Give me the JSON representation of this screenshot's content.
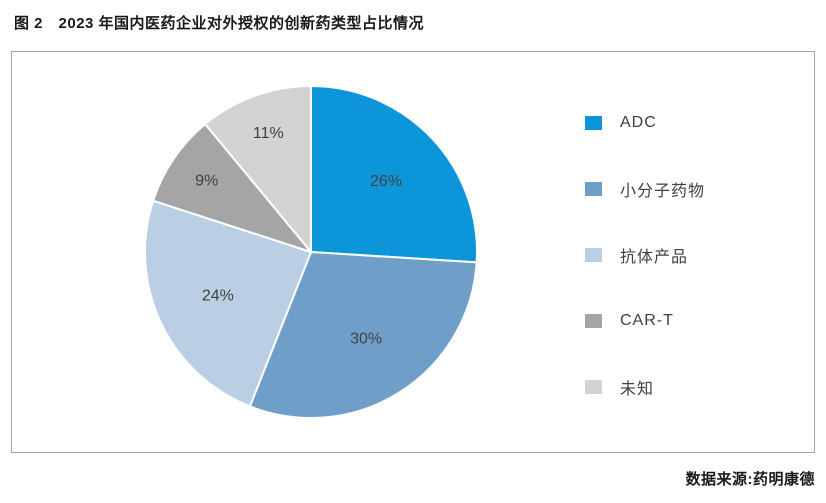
{
  "figure": {
    "title": "图 2　2023 年国内医药企业对外授权的创新药类型占比情况",
    "source": "数据来源:药明康德"
  },
  "colors": {
    "box_border": "#a6a6a6",
    "slice_border": "#ffffff",
    "label_text": "#404040",
    "title_text": "#1a1a1a"
  },
  "chart_data": {
    "type": "pie",
    "title": "2023 年国内医药企业对外授权的创新药类型占比情况",
    "legend_position": "right",
    "start_angle_deg": 0,
    "direction": "clockwise",
    "value_unit": "%",
    "slices": [
      {
        "label": "ADC",
        "value": 26,
        "display": "26%",
        "color": "#0d95da"
      },
      {
        "label": "小分子药物",
        "value": 30,
        "display": "30%",
        "color": "#6f9fc9"
      },
      {
        "label": "抗体产品",
        "value": 24,
        "display": "24%",
        "color": "#bacfe3"
      },
      {
        "label": "CAR-T",
        "value": 9,
        "display": "9%",
        "color": "#a5a5a5"
      },
      {
        "label": "未知",
        "value": 11,
        "display": "11%",
        "color": "#d3d3d3"
      }
    ]
  }
}
